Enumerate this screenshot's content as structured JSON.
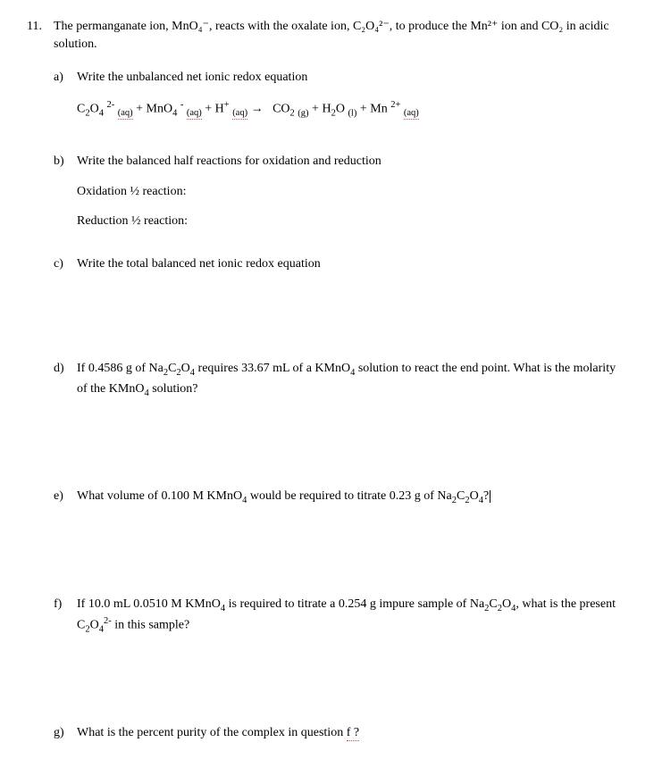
{
  "question_number": "11.",
  "intro": "The permanganate ion, MnO₄⁻, reacts with the oxalate ion, C₂O₄²⁻, to produce the Mn²⁺ ion and CO₂ in acidic solution.",
  "parts": {
    "a": {
      "label": "a)",
      "prompt": "Write the unbalanced net ionic redox equation",
      "equation": "C₂O₄ ²⁻ (aq) + MnO₄ ⁻ (aq) + H⁺ (aq) →   CO₂ (g) + H₂O (l) + Mn ²⁺ (aq)"
    },
    "b": {
      "label": "b)",
      "prompt": "Write the balanced half reactions for oxidation and reduction",
      "line1": "Oxidation ½ reaction:",
      "line2": "Reduction ½ reaction:"
    },
    "c": {
      "label": "c)",
      "prompt": "Write the total balanced net ionic redox equation"
    },
    "d": {
      "label": "d)",
      "prompt": "If 0.4586 g of Na₂C₂O₄ requires 33.67 mL of a KMnO₄ solution to react the end point. What is the molarity of the KMnO₄ solution?"
    },
    "e": {
      "label": "e)",
      "prompt": "What volume of 0.100 M KMnO₄ would be required to titrate 0.23 g of Na₂C₂O₄?"
    },
    "f": {
      "label": "f)",
      "prompt": "If 10.0 mL 0.0510 M KMnO₄ is required to titrate a 0.254 g impure sample of Na₂C₂O₄, what is the present C₂O₄²⁻ in this sample?"
    },
    "g": {
      "label": "g)",
      "prompt_pre": "What is the percent purity of the complex in question ",
      "prompt_dotted": "f ?"
    }
  }
}
